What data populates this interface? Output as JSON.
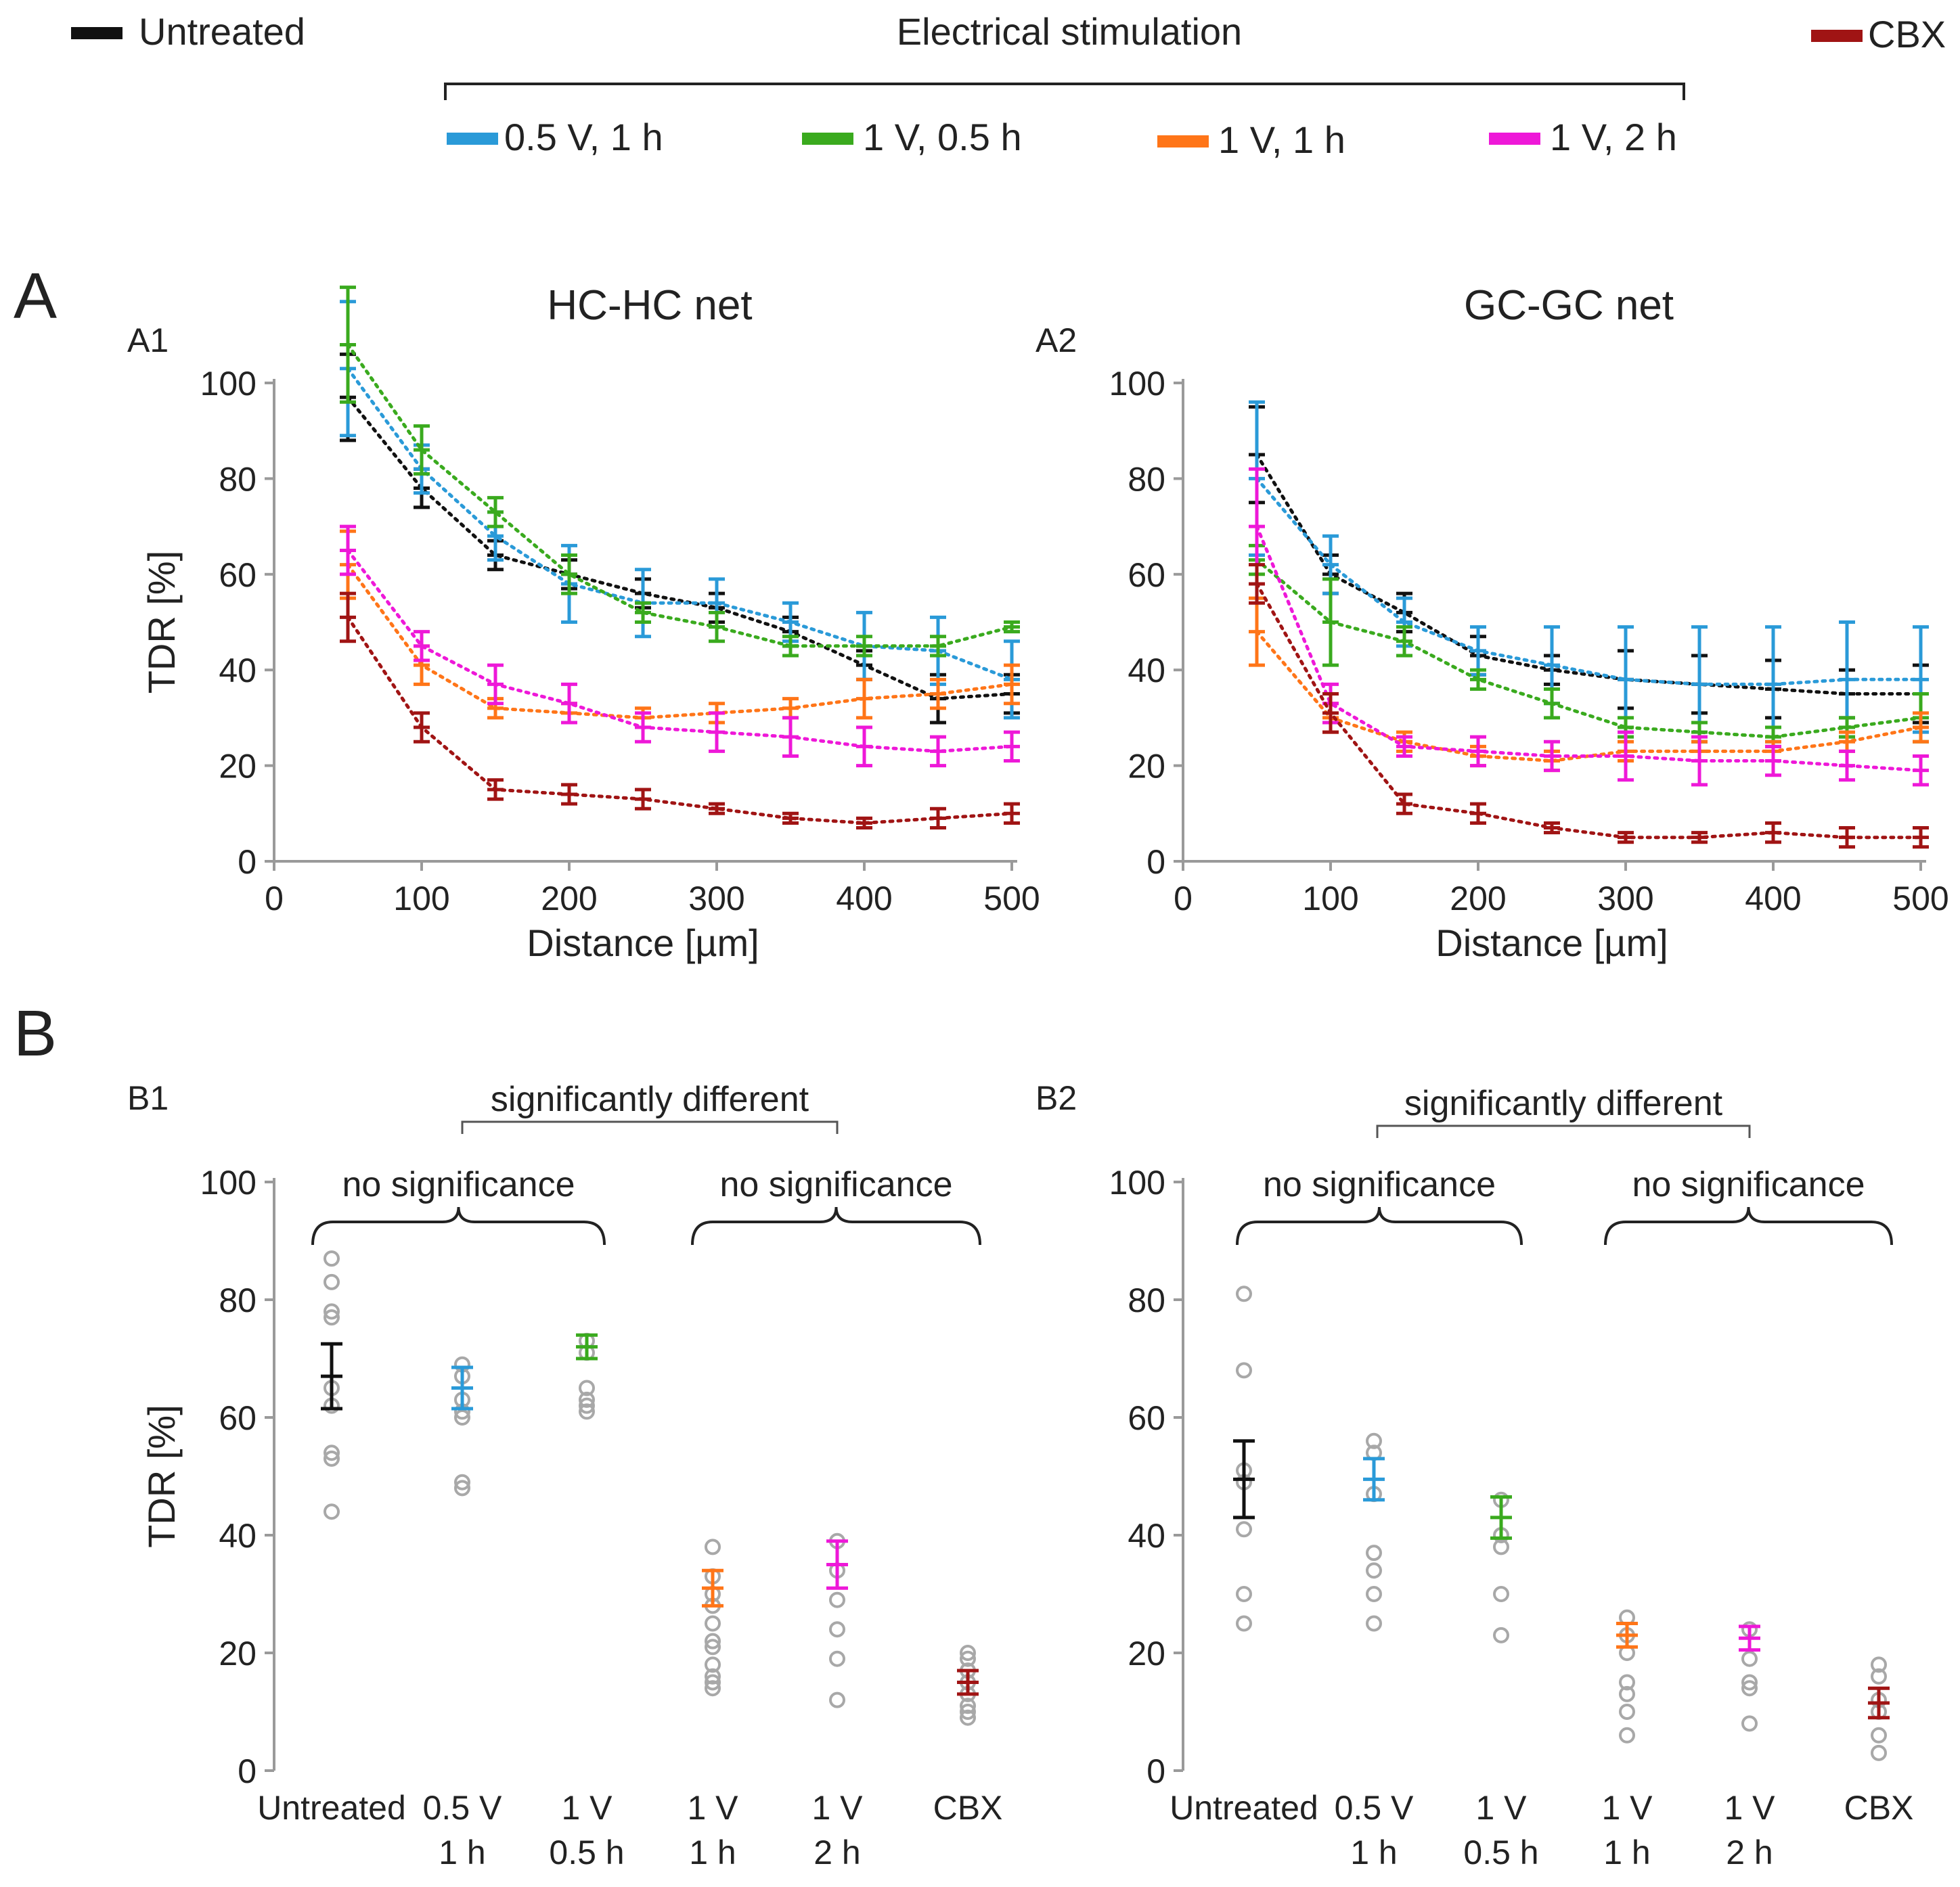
{
  "legend": {
    "untreated": {
      "label": "Untreated",
      "color": "#111111"
    },
    "electrical_title": "Electrical stimulation",
    "cbx": {
      "label": "CBX",
      "color": "#a01414"
    },
    "stim": [
      {
        "label": "0.5 V, 1 h",
        "color": "#2a9ad8"
      },
      {
        "label": "1 V, 0.5 h",
        "color": "#3aaa1e"
      },
      {
        "label": "1 V, 1 h",
        "color": "#ff7518"
      },
      {
        "label": "1 V, 2 h",
        "color": "#ee18d8"
      }
    ]
  },
  "panels": {
    "A": "A",
    "B": "B"
  },
  "chart_data": [
    {
      "id": "A1",
      "type": "line",
      "panel_label": "A1",
      "title": "HC-HC net",
      "xlabel": "Distance [µm]",
      "ylabel": "TDR [%]",
      "xlim": [
        0,
        500
      ],
      "ylim": [
        0,
        100
      ],
      "xticks": [
        "0",
        "100",
        "200",
        "300",
        "400",
        "500"
      ],
      "yticks": [
        "0",
        "20",
        "40",
        "60",
        "80",
        "100"
      ],
      "x": [
        50,
        100,
        150,
        200,
        250,
        300,
        350,
        400,
        450,
        500
      ],
      "series": [
        {
          "name": "Untreated",
          "color": "#111111",
          "values": [
            97,
            78,
            64,
            60,
            56,
            53,
            48,
            41,
            34,
            35
          ],
          "err": [
            9,
            4,
            3,
            3,
            3,
            3,
            3,
            3,
            5,
            4
          ]
        },
        {
          "name": "0.5 V, 1 h",
          "color": "#2a9ad8",
          "values": [
            103,
            82,
            68,
            58,
            54,
            54,
            50,
            45,
            44,
            38
          ],
          "err": [
            14,
            5,
            5,
            8,
            7,
            5,
            4,
            7,
            7,
            8
          ]
        },
        {
          "name": "1 V, 0.5 h",
          "color": "#3aaa1e",
          "values": [
            108,
            86,
            73,
            60,
            52,
            49,
            45,
            45,
            45,
            49
          ],
          "err": [
            12,
            5,
            3,
            4,
            2,
            3,
            2,
            2,
            2,
            1
          ]
        },
        {
          "name": "1 V, 1 h",
          "color": "#ff7518",
          "values": [
            62,
            41,
            32,
            31,
            30,
            31,
            32,
            34,
            35,
            37
          ],
          "err": [
            7,
            4,
            2,
            2,
            2,
            2,
            2,
            4,
            3,
            4
          ]
        },
        {
          "name": "1 V, 2 h",
          "color": "#ee18d8",
          "values": [
            65,
            45,
            37,
            33,
            28,
            27,
            26,
            24,
            23,
            24
          ],
          "err": [
            5,
            3,
            4,
            4,
            3,
            4,
            4,
            4,
            3,
            3
          ]
        },
        {
          "name": "CBX",
          "color": "#a01414",
          "values": [
            51,
            28,
            15,
            14,
            13,
            11,
            9,
            8,
            9,
            10
          ],
          "err": [
            5,
            3,
            2,
            2,
            2,
            1,
            1,
            1,
            2,
            2
          ]
        }
      ]
    },
    {
      "id": "A2",
      "type": "line",
      "panel_label": "A2",
      "title": "GC-GC net",
      "xlabel": "Distance [µm]",
      "ylabel": "",
      "xlim": [
        0,
        500
      ],
      "ylim": [
        0,
        100
      ],
      "xticks": [
        "0",
        "100",
        "200",
        "300",
        "400",
        "500"
      ],
      "yticks": [
        "0",
        "20",
        "40",
        "60",
        "80",
        "100"
      ],
      "x": [
        50,
        100,
        150,
        200,
        250,
        300,
        350,
        400,
        450,
        500
      ],
      "series": [
        {
          "name": "Untreated",
          "color": "#111111",
          "values": [
            85,
            60,
            52,
            43,
            40,
            38,
            37,
            36,
            35,
            35
          ],
          "err": [
            10,
            4,
            4,
            4,
            3,
            6,
            6,
            6,
            5,
            6
          ]
        },
        {
          "name": "0.5 V, 1 h",
          "color": "#2a9ad8",
          "values": [
            80,
            62,
            50,
            44,
            41,
            38,
            37,
            37,
            38,
            38
          ],
          "err": [
            16,
            6,
            5,
            5,
            8,
            11,
            12,
            12,
            12,
            11
          ]
        },
        {
          "name": "1 V, 0.5 h",
          "color": "#3aaa1e",
          "values": [
            63,
            50,
            46,
            38,
            33,
            28,
            27,
            26,
            28,
            30
          ],
          "err": [
            3,
            9,
            3,
            2,
            3,
            2,
            2,
            2,
            2,
            5
          ]
        },
        {
          "name": "1 V, 1 h",
          "color": "#ff7518",
          "values": [
            48,
            30,
            25,
            22,
            21,
            23,
            23,
            23,
            25,
            28
          ],
          "err": [
            7,
            3,
            2,
            2,
            2,
            2,
            2,
            2,
            2,
            3
          ]
        },
        {
          "name": "1 V, 2 h",
          "color": "#ee18d8",
          "values": [
            70,
            33,
            24,
            23,
            22,
            22,
            21,
            21,
            20,
            19
          ],
          "err": [
            12,
            4,
            2,
            3,
            3,
            5,
            5,
            3,
            3,
            3
          ]
        },
        {
          "name": "CBX",
          "color": "#a01414",
          "values": [
            58,
            31,
            12,
            10,
            7,
            5,
            5,
            6,
            5,
            5
          ],
          "err": [
            4,
            4,
            2,
            2,
            1,
            1,
            1,
            2,
            2,
            2
          ]
        }
      ]
    },
    {
      "id": "B1",
      "type": "scatter",
      "panel_label": "B1",
      "ylabel": "TDR [%]",
      "ylim": [
        0,
        100
      ],
      "yticks": [
        "0",
        "20",
        "40",
        "60",
        "80",
        "100"
      ],
      "categories": [
        [
          "Untreated"
        ],
        [
          "0.5 V",
          "1 h"
        ],
        [
          "1 V",
          "0.5 h"
        ],
        [
          "1 V",
          "1 h"
        ],
        [
          "1 V",
          "2 h"
        ],
        [
          "CBX"
        ]
      ],
      "series": [
        {
          "name": "Untreated",
          "color": "#111111",
          "mean": 67,
          "err": 5.5,
          "points": [
            87,
            83,
            78,
            77,
            65,
            62,
            54,
            53,
            44
          ]
        },
        {
          "name": "0.5 V, 1 h",
          "color": "#2a9ad8",
          "mean": 65,
          "err": 3.5,
          "points": [
            69,
            67,
            63,
            61,
            60,
            49,
            48
          ]
        },
        {
          "name": "1 V, 0.5 h",
          "color": "#3aaa1e",
          "mean": 72,
          "err": 2,
          "points": [
            73,
            71,
            65,
            63,
            62,
            61
          ]
        },
        {
          "name": "1 V, 1 h",
          "color": "#ff7518",
          "mean": 31,
          "err": 3,
          "points": [
            38,
            33,
            30,
            28,
            25,
            22,
            21,
            18,
            16,
            15,
            14
          ]
        },
        {
          "name": "1 V, 2 h",
          "color": "#ee18d8",
          "mean": 35,
          "err": 4,
          "points": [
            39,
            34,
            29,
            24,
            19,
            12
          ]
        },
        {
          "name": "CBX",
          "color": "#a01414",
          "mean": 15,
          "err": 2,
          "points": [
            20,
            19,
            17,
            15,
            13,
            11,
            10,
            9
          ]
        }
      ],
      "annotations": {
        "significant": "significantly different",
        "ns_left": "no significance",
        "ns_right": "no significance"
      }
    },
    {
      "id": "B2",
      "type": "scatter",
      "panel_label": "B2",
      "ylabel": "",
      "ylim": [
        0,
        100
      ],
      "yticks": [
        "0",
        "20",
        "40",
        "60",
        "80",
        "100"
      ],
      "categories": [
        [
          "Untreated"
        ],
        [
          "0.5 V",
          "1 h"
        ],
        [
          "1 V",
          "0.5 h"
        ],
        [
          "1 V",
          "1 h"
        ],
        [
          "1 V",
          "2 h"
        ],
        [
          "CBX"
        ]
      ],
      "series": [
        {
          "name": "Untreated",
          "color": "#111111",
          "mean": 49.5,
          "err": 6.5,
          "points": [
            81,
            68,
            51,
            49,
            41,
            30,
            25
          ]
        },
        {
          "name": "0.5 V, 1 h",
          "color": "#2a9ad8",
          "mean": 49.5,
          "err": 3.5,
          "points": [
            56,
            54,
            47,
            37,
            34,
            30,
            25
          ]
        },
        {
          "name": "1 V, 0.5 h",
          "color": "#3aaa1e",
          "mean": 43,
          "err": 3.5,
          "points": [
            46,
            40,
            38,
            30,
            23
          ]
        },
        {
          "name": "1 V, 1 h",
          "color": "#ff7518",
          "mean": 23,
          "err": 2,
          "points": [
            26,
            23,
            20,
            15,
            13,
            10,
            6
          ]
        },
        {
          "name": "1 V, 2 h",
          "color": "#ee18d8",
          "mean": 22.5,
          "err": 2,
          "points": [
            24,
            19,
            15,
            14,
            8
          ]
        },
        {
          "name": "CBX",
          "color": "#a01414",
          "mean": 11.5,
          "err": 2.5,
          "points": [
            18,
            16,
            12,
            10,
            6,
            3
          ]
        }
      ],
      "annotations": {
        "significant": "significantly different",
        "ns_left": "no significance",
        "ns_right": "no significance"
      }
    }
  ]
}
